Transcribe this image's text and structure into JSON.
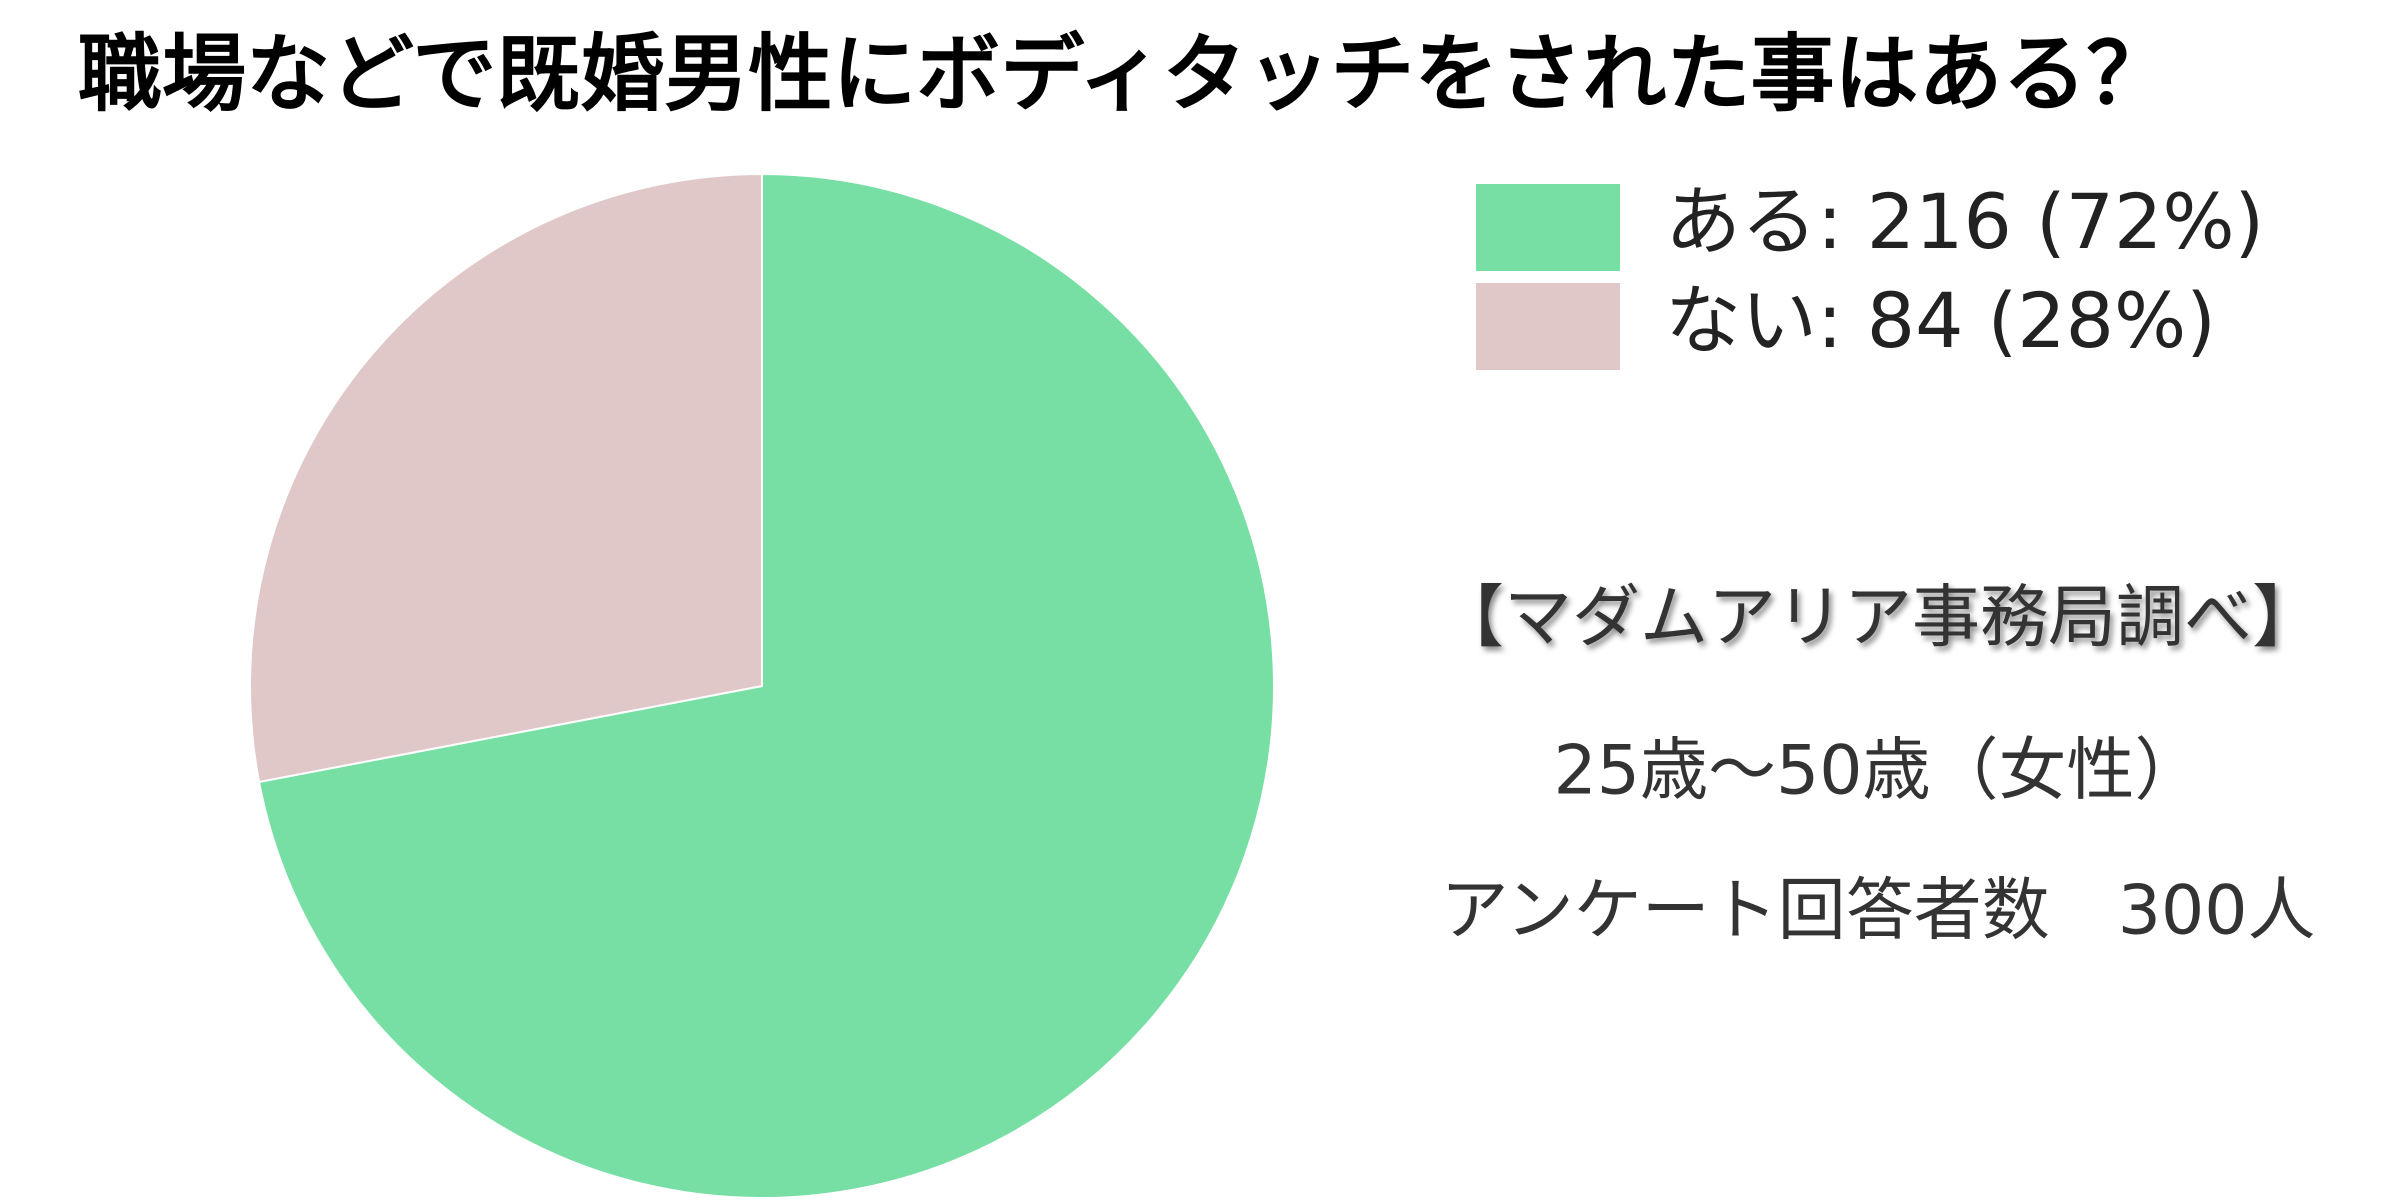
{
  "chart_data": {
    "type": "pie",
    "title": "職場などで既婚男性にボディタッチをされた事はある？",
    "categories": [
      "ある: 216 (72%)",
      "ない: 84 (28%)"
    ],
    "values": [
      216,
      84
    ],
    "colors": [
      "#78dfa4",
      "#e0c8c8"
    ],
    "legend": "top-right",
    "annotations": [
      "【マダムアリア事務局調べ】",
      "25歳～50歳（女性）",
      "アンケート回答者数　300人"
    ]
  }
}
